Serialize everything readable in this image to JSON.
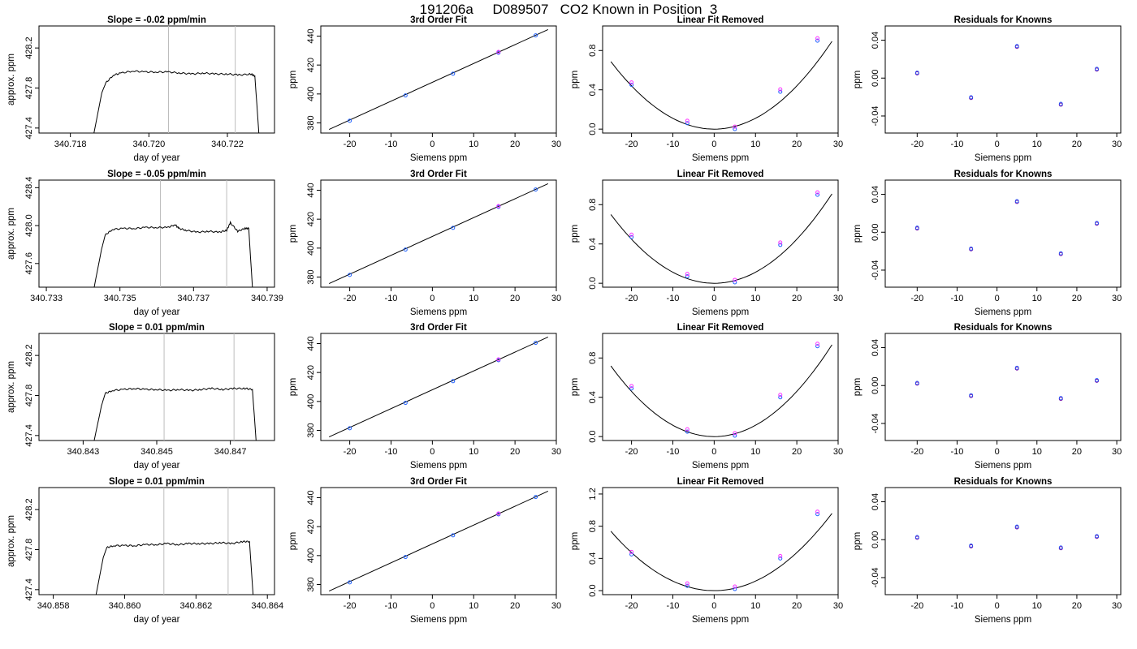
{
  "page_title": "191206a     D089507   CO2 Known in Position  3",
  "colors": {
    "axis": "#000000",
    "line": "#000000",
    "vline": "#bdbdbd",
    "pt_blue": "#1e5fff",
    "pt_magenta": "#ff33ff",
    "pt_purple": "#6a0dad"
  },
  "chart_data": [
    {
      "type": "line",
      "title": "Slope =  -0.02  ppm/min",
      "xlabel": "day of year",
      "ylabel": "approx. ppm",
      "xlim": [
        340.7172,
        340.7232
      ],
      "ylim": [
        427.35,
        428.42
      ],
      "xticks": [
        "340.718",
        "340.720",
        "340.722"
      ],
      "yticks": [
        "427.4",
        "427.8",
        "428.2"
      ],
      "vlines": [
        340.7205,
        340.7222
      ],
      "x": [
        340.7186,
        340.7188,
        340.7189,
        340.7191,
        340.7193,
        340.7196,
        340.7199,
        340.7202,
        340.7205,
        340.7208,
        340.7211,
        340.7214,
        340.7217,
        340.722,
        340.7223,
        340.7226,
        340.7227,
        340.7228
      ],
      "y": [
        427.35,
        427.75,
        427.85,
        427.93,
        427.95,
        427.97,
        427.96,
        427.96,
        427.96,
        427.95,
        427.94,
        427.95,
        427.94,
        427.94,
        427.93,
        427.94,
        427.92,
        427.35
      ]
    },
    {
      "type": "scatter",
      "title": "3rd Order Fit",
      "xlabel": "Siemens ppm",
      "ylabel": "ppm",
      "xlim": [
        -27,
        30
      ],
      "ylim": [
        373,
        447
      ],
      "xticks": [
        "-20",
        "-10",
        "0",
        "10",
        "20",
        "30"
      ],
      "yticks": [
        "380",
        "400",
        "420",
        "440"
      ],
      "x": [
        -20,
        -6.5,
        5,
        16,
        25
      ],
      "y": [
        381.5,
        399,
        414,
        428.5,
        440.5
      ],
      "fit": [
        [
          -25,
          375.5
        ],
        [
          28,
          444.5
        ]
      ]
    },
    {
      "type": "scatter",
      "title": "Linear Fit Removed",
      "xlabel": "Siemens ppm",
      "ylabel": "ppm",
      "xlim": [
        -27,
        30
      ],
      "ylim": [
        -0.04,
        1.05
      ],
      "xticks": [
        "-20",
        "-10",
        "0",
        "10",
        "20",
        "30"
      ],
      "yticks": [
        "0.0",
        "0.4",
        "0.8"
      ],
      "x": [
        -20,
        -6.5,
        5,
        16,
        25
      ],
      "y": [
        0.45,
        0.06,
        0.0,
        0.38,
        0.9
      ],
      "curve": {
        "a": 0.0011,
        "min": 0.0,
        "xmin": -25,
        "xmax": 28.5
      }
    },
    {
      "type": "scatter",
      "title": "Residuals for Knowns",
      "xlabel": "Siemens ppm",
      "ylabel": "ppm",
      "xlim": [
        -28,
        31
      ],
      "ylim": [
        -0.058,
        0.055
      ],
      "xticks": [
        "-20",
        "-10",
        "0",
        "10",
        "20",
        "30"
      ],
      "yticks": [
        "-0.04",
        "0.00",
        "0.04"
      ],
      "x": [
        -20,
        -6.5,
        5,
        16,
        25
      ],
      "y": [
        0.005,
        -0.021,
        0.033,
        -0.028,
        0.009
      ]
    },
    {
      "type": "line",
      "title": "Slope =  -0.05  ppm/min",
      "xlabel": "day of year",
      "ylabel": "approx. ppm",
      "xlim": [
        340.7328,
        340.7392
      ],
      "ylim": [
        427.35,
        428.48
      ],
      "xticks": [
        "340.733",
        "340.735",
        "340.737",
        "340.739"
      ],
      "yticks": [
        "427.6",
        "428.0",
        "428.4"
      ],
      "vlines": [
        340.7361,
        340.7379
      ],
      "x": [
        340.7343,
        340.7345,
        340.7346,
        340.7348,
        340.7351,
        340.7354,
        340.7357,
        340.736,
        340.7363,
        340.7365,
        340.7366,
        340.7368,
        340.7371,
        340.7374,
        340.7377,
        340.7379,
        340.738,
        340.7382,
        340.7384,
        340.7385,
        340.7386
      ],
      "y": [
        427.35,
        427.75,
        427.9,
        427.96,
        427.97,
        427.97,
        427.98,
        427.98,
        427.98,
        428.01,
        427.97,
        427.95,
        427.93,
        427.94,
        427.93,
        427.95,
        428.03,
        427.94,
        427.97,
        427.97,
        427.35
      ]
    },
    {
      "type": "scatter",
      "title": "3rd Order Fit",
      "xlabel": "Siemens ppm",
      "ylabel": "ppm",
      "xlim": [
        -27,
        30
      ],
      "ylim": [
        373,
        447
      ],
      "xticks": [
        "-20",
        "-10",
        "0",
        "10",
        "20",
        "30"
      ],
      "yticks": [
        "380",
        "400",
        "420",
        "440"
      ],
      "x": [
        -20,
        -6.5,
        5,
        16,
        25
      ],
      "y": [
        381.5,
        399,
        414,
        428.5,
        440.5
      ],
      "fit": [
        [
          -25,
          375.5
        ],
        [
          28,
          444.5
        ]
      ]
    },
    {
      "type": "scatter",
      "title": "Linear Fit Removed",
      "xlabel": "Siemens ppm",
      "ylabel": "ppm",
      "xlim": [
        -27,
        30
      ],
      "ylim": [
        -0.04,
        1.05
      ],
      "xticks": [
        "-20",
        "-10",
        "0",
        "10",
        "20",
        "30"
      ],
      "yticks": [
        "0.0",
        "0.4",
        "0.8"
      ],
      "x": [
        -20,
        -6.5,
        5,
        16,
        25
      ],
      "y": [
        0.47,
        0.07,
        0.01,
        0.39,
        0.9
      ],
      "curve": {
        "a": 0.00112,
        "min": 0.0,
        "xmin": -25,
        "xmax": 28.5
      }
    },
    {
      "type": "scatter",
      "title": "Residuals for Knowns",
      "xlabel": "Siemens ppm",
      "ylabel": "ppm",
      "xlim": [
        -28,
        31
      ],
      "ylim": [
        -0.058,
        0.055
      ],
      "xticks": [
        "-20",
        "-10",
        "0",
        "10",
        "20",
        "30"
      ],
      "yticks": [
        "-0.04",
        "0.00",
        "0.04"
      ],
      "x": [
        -20,
        -6.5,
        5,
        16,
        25
      ],
      "y": [
        0.004,
        -0.018,
        0.032,
        -0.023,
        0.009
      ]
    },
    {
      "type": "line",
      "title": "Slope =  0.01  ppm/min",
      "xlabel": "day of year",
      "ylabel": "approx. ppm",
      "xlim": [
        340.8418,
        340.8482
      ],
      "ylim": [
        427.35,
        428.42
      ],
      "xticks": [
        "340.843",
        "340.845",
        "340.847"
      ],
      "yticks": [
        "427.4",
        "427.8",
        "428.2"
      ],
      "vlines": [
        340.8452,
        340.8471
      ],
      "x": [
        340.8433,
        340.8435,
        340.8436,
        340.8438,
        340.8441,
        340.8444,
        340.8447,
        340.845,
        340.8453,
        340.8456,
        340.8459,
        340.8462,
        340.8465,
        340.8468,
        340.8471,
        340.8474,
        340.8476,
        340.8477
      ],
      "y": [
        427.35,
        427.7,
        427.82,
        427.85,
        427.86,
        427.87,
        427.86,
        427.86,
        427.85,
        427.86,
        427.85,
        427.86,
        427.87,
        427.86,
        427.87,
        427.87,
        427.86,
        427.35
      ]
    },
    {
      "type": "scatter",
      "title": "3rd Order Fit",
      "xlabel": "Siemens ppm",
      "ylabel": "ppm",
      "xlim": [
        -27,
        30
      ],
      "ylim": [
        373,
        447
      ],
      "xticks": [
        "-20",
        "-10",
        "0",
        "10",
        "20",
        "30"
      ],
      "yticks": [
        "380",
        "400",
        "420",
        "440"
      ],
      "x": [
        -20,
        -6.5,
        5,
        16,
        25
      ],
      "y": [
        381.5,
        399,
        414,
        428.5,
        440.5
      ],
      "fit": [
        [
          -25,
          375.5
        ],
        [
          28,
          444.5
        ]
      ]
    },
    {
      "type": "scatter",
      "title": "Linear Fit Removed",
      "xlabel": "Siemens ppm",
      "ylabel": "ppm",
      "xlim": [
        -27,
        30
      ],
      "ylim": [
        -0.04,
        1.05
      ],
      "xticks": [
        "-20",
        "-10",
        "0",
        "10",
        "20",
        "30"
      ],
      "yticks": [
        "0.0",
        "0.4",
        "0.8"
      ],
      "x": [
        -20,
        -6.5,
        5,
        16,
        25
      ],
      "y": [
        0.49,
        0.05,
        0.01,
        0.4,
        0.92
      ],
      "curve": {
        "a": 0.00115,
        "min": 0.0,
        "xmin": -25,
        "xmax": 28.5
      }
    },
    {
      "type": "scatter",
      "title": "Residuals for Knowns",
      "xlabel": "Siemens ppm",
      "ylabel": "ppm",
      "xlim": [
        -28,
        31
      ],
      "ylim": [
        -0.058,
        0.055
      ],
      "xticks": [
        "-20",
        "-10",
        "0",
        "10",
        "20",
        "30"
      ],
      "yticks": [
        "-0.04",
        "0.00",
        "0.04"
      ],
      "x": [
        -20,
        -6.5,
        5,
        16,
        25
      ],
      "y": [
        0.002,
        -0.011,
        0.018,
        -0.014,
        0.005
      ]
    },
    {
      "type": "line",
      "title": "Slope =  0.01  ppm/min",
      "xlabel": "day of year",
      "ylabel": "approx. ppm",
      "xlim": [
        340.8576,
        340.8642
      ],
      "ylim": [
        427.35,
        428.42
      ],
      "xticks": [
        "340.858",
        "340.860",
        "340.862",
        "340.864"
      ],
      "yticks": [
        "427.4",
        "427.8",
        "428.2"
      ],
      "vlines": [
        340.8611,
        340.8629
      ],
      "x": [
        340.8592,
        340.8594,
        340.8595,
        340.8597,
        340.86,
        340.8603,
        340.8606,
        340.8609,
        340.8612,
        340.8615,
        340.8618,
        340.8621,
        340.8624,
        340.8627,
        340.863,
        340.8633,
        340.8635,
        340.8636
      ],
      "y": [
        427.35,
        427.72,
        427.82,
        427.84,
        427.84,
        427.84,
        427.85,
        427.85,
        427.86,
        427.85,
        427.86,
        427.86,
        427.86,
        427.87,
        427.86,
        427.88,
        427.88,
        427.35
      ]
    },
    {
      "type": "scatter",
      "title": "3rd Order Fit",
      "xlabel": "Siemens ppm",
      "ylabel": "ppm",
      "xlim": [
        -27,
        30
      ],
      "ylim": [
        373,
        447
      ],
      "xticks": [
        "-20",
        "-10",
        "0",
        "10",
        "20",
        "30"
      ],
      "yticks": [
        "380",
        "400",
        "420",
        "440"
      ],
      "x": [
        -20,
        -6.5,
        5,
        16,
        25
      ],
      "y": [
        381.5,
        399,
        414,
        428.5,
        440.5
      ],
      "fit": [
        [
          -25,
          375.5
        ],
        [
          28,
          444.5
        ]
      ]
    },
    {
      "type": "scatter",
      "title": "Linear Fit Removed",
      "xlabel": "Siemens ppm",
      "ylabel": "ppm",
      "xlim": [
        -27,
        30
      ],
      "ylim": [
        -0.05,
        1.28
      ],
      "xticks": [
        "-20",
        "-10",
        "0",
        "10",
        "20",
        "30"
      ],
      "yticks": [
        "0.0",
        "0.4",
        "0.8",
        "1.2"
      ],
      "x": [
        -20,
        -6.5,
        5,
        16,
        25
      ],
      "y": [
        0.45,
        0.06,
        0.02,
        0.4,
        0.95
      ],
      "curve": {
        "a": 0.00118,
        "min": 0.0,
        "xmin": -25,
        "xmax": 28.5
      }
    },
    {
      "type": "scatter",
      "title": "Residuals for Knowns",
      "xlabel": "Siemens ppm",
      "ylabel": "ppm",
      "xlim": [
        -28,
        31
      ],
      "ylim": [
        -0.058,
        0.055
      ],
      "xticks": [
        "-20",
        "-10",
        "0",
        "10",
        "20",
        "30"
      ],
      "yticks": [
        "-0.04",
        "0.00",
        "0.04"
      ],
      "x": [
        -20,
        -6.5,
        5,
        16,
        25
      ],
      "y": [
        0.002,
        -0.007,
        0.013,
        -0.009,
        0.003
      ]
    }
  ]
}
